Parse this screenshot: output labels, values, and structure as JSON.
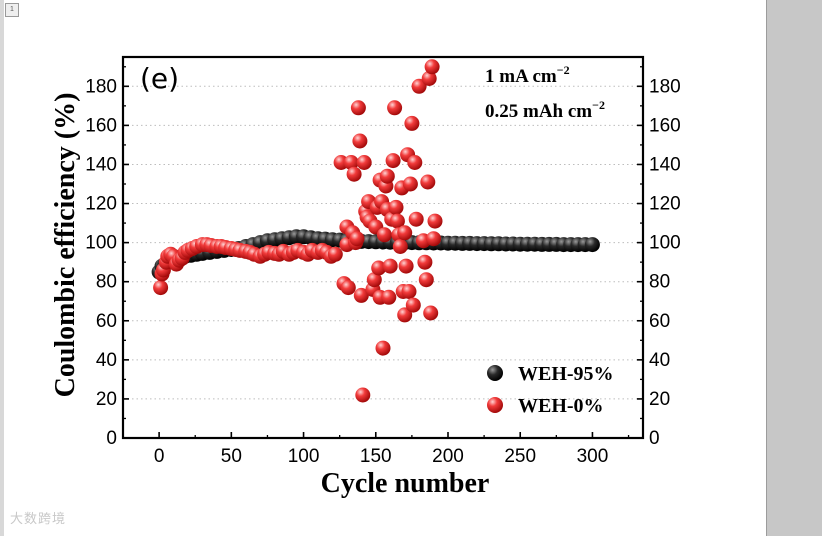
{
  "page": {
    "marker": "1",
    "watermark": "大数跨境"
  },
  "chart_data": {
    "type": "scatter",
    "panel_label": "(e)",
    "annotation_lines": [
      "1 mA cm",
      "0.25 mAh cm"
    ],
    "annotation_superscript": "−2",
    "xlabel": "Cycle number",
    "ylabel": "Coulombic efficiency (%)",
    "xlim": [
      -25,
      335
    ],
    "ylim": [
      0,
      195
    ],
    "xticks": [
      0,
      50,
      100,
      150,
      200,
      250,
      300
    ],
    "yticks": [
      0,
      20,
      40,
      60,
      80,
      100,
      120,
      140,
      160,
      180
    ],
    "right_axis_ticks": [
      0,
      20,
      40,
      60,
      80,
      100,
      120,
      140,
      160,
      180
    ],
    "gridlines": "horizontal dotted",
    "legend_position": "bottom-right",
    "series": [
      {
        "name": "WEH-95%",
        "color": "#111111",
        "points": [
          [
            0,
            85
          ],
          [
            2,
            88
          ],
          [
            4,
            89
          ],
          [
            6,
            90
          ],
          [
            8,
            91
          ],
          [
            10,
            91.5
          ],
          [
            12,
            92
          ],
          [
            15,
            92.5
          ],
          [
            18,
            93
          ],
          [
            22,
            93.5
          ],
          [
            26,
            94
          ],
          [
            30,
            94.5
          ],
          [
            35,
            95
          ],
          [
            40,
            95.5
          ],
          [
            45,
            96
          ],
          [
            50,
            96.5
          ],
          [
            55,
            97
          ],
          [
            60,
            98
          ],
          [
            65,
            99
          ],
          [
            70,
            100
          ],
          [
            75,
            101
          ],
          [
            80,
            101.5
          ],
          [
            85,
            102
          ],
          [
            90,
            102.5
          ],
          [
            95,
            103
          ],
          [
            100,
            103
          ],
          [
            105,
            102.5
          ],
          [
            110,
            102
          ],
          [
            115,
            101.8
          ],
          [
            120,
            101.5
          ],
          [
            125,
            101.3
          ],
          [
            130,
            101
          ],
          [
            135,
            100.8
          ],
          [
            140,
            100.6
          ],
          [
            145,
            100.5
          ],
          [
            150,
            100.4
          ],
          [
            155,
            100.3
          ],
          [
            160,
            100.2
          ],
          [
            165,
            100.1
          ],
          [
            170,
            100
          ],
          [
            175,
            100
          ],
          [
            180,
            99.9
          ],
          [
            185,
            99.9
          ],
          [
            190,
            99.8
          ],
          [
            195,
            99.8
          ],
          [
            200,
            99.7
          ],
          [
            205,
            99.7
          ],
          [
            210,
            99.6
          ],
          [
            215,
            99.6
          ],
          [
            220,
            99.5
          ],
          [
            225,
            99.5
          ],
          [
            230,
            99.4
          ],
          [
            235,
            99.4
          ],
          [
            240,
            99.3
          ],
          [
            245,
            99.3
          ],
          [
            250,
            99.2
          ],
          [
            255,
            99.2
          ],
          [
            260,
            99.2
          ],
          [
            265,
            99.1
          ],
          [
            270,
            99.1
          ],
          [
            275,
            99.1
          ],
          [
            280,
            99
          ],
          [
            285,
            99
          ],
          [
            290,
            99
          ],
          [
            295,
            99
          ],
          [
            300,
            99
          ]
        ]
      },
      {
        "name": "WEH-0%",
        "color": "#e8141c",
        "points": [
          [
            1,
            77
          ],
          [
            2,
            84
          ],
          [
            3,
            86
          ],
          [
            5,
            90
          ],
          [
            6,
            93
          ],
          [
            8,
            94
          ],
          [
            10,
            93
          ],
          [
            12,
            89
          ],
          [
            14,
            91
          ],
          [
            16,
            92
          ],
          [
            18,
            95
          ],
          [
            20,
            96
          ],
          [
            23,
            97
          ],
          [
            26,
            98
          ],
          [
            30,
            99
          ],
          [
            33,
            99
          ],
          [
            36,
            98.5
          ],
          [
            40,
            98
          ],
          [
            43,
            98
          ],
          [
            46,
            97.5
          ],
          [
            50,
            97
          ],
          [
            53,
            96.5
          ],
          [
            56,
            96
          ],
          [
            60,
            95.5
          ],
          [
            63,
            95
          ],
          [
            66,
            94
          ],
          [
            70,
            93
          ],
          [
            73,
            94
          ],
          [
            76,
            95
          ],
          [
            80,
            94.5
          ],
          [
            83,
            94
          ],
          [
            86,
            95.5
          ],
          [
            90,
            94
          ],
          [
            93,
            95
          ],
          [
            96,
            96
          ],
          [
            100,
            95
          ],
          [
            103,
            94
          ],
          [
            106,
            96
          ],
          [
            110,
            95
          ],
          [
            113,
            96
          ],
          [
            116,
            95
          ],
          [
            119,
            93
          ],
          [
            122,
            94
          ],
          [
            126,
            141
          ],
          [
            128,
            79
          ],
          [
            130,
            108
          ],
          [
            130,
            99
          ],
          [
            131,
            77
          ],
          [
            133,
            141
          ],
          [
            134,
            105
          ],
          [
            135,
            135
          ],
          [
            136,
            100
          ],
          [
            137,
            102
          ],
          [
            138,
            169
          ],
          [
            139,
            152
          ],
          [
            140,
            73
          ],
          [
            141,
            22
          ],
          [
            142,
            141
          ],
          [
            143,
            116
          ],
          [
            144,
            113
          ],
          [
            145,
            121
          ],
          [
            146,
            111
          ],
          [
            148,
            76
          ],
          [
            149,
            81
          ],
          [
            150,
            108
          ],
          [
            151,
            118
          ],
          [
            152,
            87
          ],
          [
            153,
            72
          ],
          [
            153,
            132
          ],
          [
            154,
            121
          ],
          [
            155,
            46
          ],
          [
            156,
            104
          ],
          [
            157,
            129
          ],
          [
            158,
            117
          ],
          [
            158,
            134
          ],
          [
            159,
            72
          ],
          [
            160,
            88
          ],
          [
            161,
            112
          ],
          [
            162,
            142
          ],
          [
            163,
            169
          ],
          [
            164,
            118
          ],
          [
            165,
            111
          ],
          [
            166,
            104
          ],
          [
            167,
            98
          ],
          [
            168,
            128
          ],
          [
            169,
            75
          ],
          [
            170,
            63
          ],
          [
            170,
            105
          ],
          [
            171,
            88
          ],
          [
            172,
            145
          ],
          [
            173,
            75
          ],
          [
            174,
            130
          ],
          [
            175,
            161
          ],
          [
            176,
            68
          ],
          [
            177,
            141
          ],
          [
            178,
            112
          ],
          [
            180,
            180
          ],
          [
            183,
            101
          ],
          [
            184,
            90
          ],
          [
            185,
            81
          ],
          [
            186,
            131
          ],
          [
            187,
            184
          ],
          [
            188,
            64
          ],
          [
            189,
            190
          ],
          [
            190,
            102
          ],
          [
            191,
            111
          ]
        ]
      }
    ]
  }
}
